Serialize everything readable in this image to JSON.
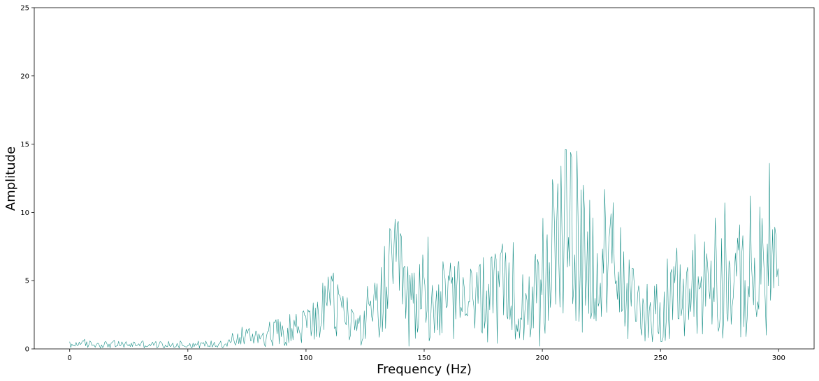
{
  "chart_data": {
    "type": "line",
    "title": "",
    "xlabel": "Frequency (Hz)",
    "ylabel": "Amplitude",
    "xlim": [
      -15,
      315
    ],
    "ylim": [
      0,
      25
    ],
    "xticks": [
      0,
      50,
      100,
      150,
      200,
      250,
      300
    ],
    "xtick_labels": [
      "0",
      "50",
      "100",
      "150",
      "200",
      "250",
      "300"
    ],
    "yticks": [
      0,
      5,
      10,
      15,
      20,
      25
    ],
    "ytick_labels": [
      "0",
      "5",
      "10",
      "15",
      "20",
      "25"
    ],
    "grid": false,
    "legend": "none",
    "color": "#1a9088",
    "envelope": {
      "x": [
        0,
        10,
        20,
        30,
        40,
        50,
        60,
        65,
        70,
        75,
        80,
        85,
        90,
        95,
        100,
        105,
        110,
        115,
        120,
        125,
        130,
        135,
        138,
        142,
        145,
        150,
        155,
        160,
        165,
        170,
        175,
        180,
        185,
        190,
        195,
        200,
        205,
        208,
        212,
        215,
        218,
        222,
        225,
        230,
        235,
        240,
        245,
        250,
        255,
        260,
        265,
        270,
        275,
        280,
        285,
        290,
        295,
        300
      ],
      "y": [
        0.3,
        0.35,
        0.3,
        0.35,
        0.3,
        0.3,
        0.35,
        0.4,
        0.6,
        0.9,
        1.0,
        1.1,
        1.3,
        1.5,
        1.8,
        2.2,
        3.2,
        2.8,
        1.8,
        1.6,
        3.0,
        4.8,
        5.2,
        4.5,
        3.2,
        3.6,
        3.4,
        3.3,
        3.5,
        3.4,
        3.7,
        3.8,
        3.9,
        3.7,
        3.6,
        4.0,
        6.5,
        8.0,
        8.5,
        8.2,
        7.0,
        5.8,
        5.2,
        4.8,
        4.0,
        3.2,
        2.8,
        2.8,
        3.2,
        3.8,
        4.3,
        4.8,
        5.0,
        4.6,
        4.3,
        4.8,
        5.6,
        5.5
      ],
      "peaks": [
        {
          "x": 0.5,
          "y": 0.1
        },
        {
          "x": 4,
          "y": 0.5
        },
        {
          "x": 35,
          "y": 0.5
        },
        {
          "x": 73,
          "y": 1.6
        },
        {
          "x": 89,
          "y": 2.0
        },
        {
          "x": 100,
          "y": 2.4
        },
        {
          "x": 104,
          "y": 3.0
        },
        {
          "x": 110.5,
          "y": 5.35
        },
        {
          "x": 114,
          "y": 4.0
        },
        {
          "x": 136.5,
          "y": 6.9
        },
        {
          "x": 138,
          "y": 6.4
        },
        {
          "x": 143.5,
          "y": 0.2
        },
        {
          "x": 149.5,
          "y": 6.9
        },
        {
          "x": 151.5,
          "y": 8.2
        },
        {
          "x": 158,
          "y": 6.4
        },
        {
          "x": 161,
          "y": 6.3
        },
        {
          "x": 175,
          "y": 6.7
        },
        {
          "x": 177,
          "y": 0.5
        },
        {
          "x": 181,
          "y": 0.4
        },
        {
          "x": 183,
          "y": 7.7
        },
        {
          "x": 187.5,
          "y": 7.8
        },
        {
          "x": 199,
          "y": 0.2
        },
        {
          "x": 206.5,
          "y": 12.1
        },
        {
          "x": 208,
          "y": 13.4
        },
        {
          "x": 212,
          "y": 14.4
        },
        {
          "x": 213,
          "y": 3.3
        },
        {
          "x": 214.5,
          "y": 14.5
        },
        {
          "x": 220,
          "y": 10.9
        },
        {
          "x": 222,
          "y": 2.2
        },
        {
          "x": 229,
          "y": 9.9
        },
        {
          "x": 233,
          "y": 8.9
        },
        {
          "x": 252,
          "y": 0.6
        },
        {
          "x": 257,
          "y": 7.4
        },
        {
          "x": 264.5,
          "y": 8.4
        },
        {
          "x": 273,
          "y": 9.6
        },
        {
          "x": 277,
          "y": 10.7
        },
        {
          "x": 280,
          "y": 1.8
        },
        {
          "x": 285,
          "y": 8.3
        },
        {
          "x": 286,
          "y": 0.9
        },
        {
          "x": 292,
          "y": 10.4
        },
        {
          "x": 296,
          "y": 13.6
        },
        {
          "x": 299,
          "y": 8.4
        },
        {
          "x": 300,
          "y": 4.6
        }
      ]
    }
  }
}
